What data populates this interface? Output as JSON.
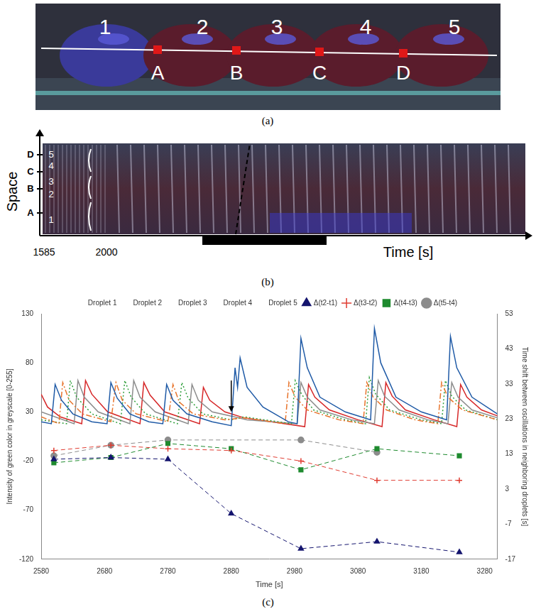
{
  "panel_a": {
    "droplet_labels": [
      "1",
      "2",
      "3",
      "4",
      "5"
    ],
    "point_labels": [
      "A",
      "B",
      "C",
      "D"
    ],
    "caption": "(a)"
  },
  "panel_b": {
    "y_axis_title": "Space",
    "x_axis_title": "Time [s]",
    "x_tick_labels": [
      1585,
      2000
    ],
    "space_labels": [
      "D",
      "C",
      "B",
      "A"
    ],
    "droplet_labels": [
      "5",
      "4",
      "3",
      "2",
      "1"
    ],
    "caption": "(b)"
  },
  "chart_data": {
    "type": "line",
    "caption": "(c)",
    "x_title": "Time [s]",
    "y_title": "Intensity of green color in greyscale [0-255]",
    "y2_title": "Time shift between oscillations in neighboring droplets [s]",
    "xlim": [
      2580,
      3300
    ],
    "xticks": [
      2580,
      2680,
      2780,
      2880,
      2980,
      3080,
      3180,
      3280
    ],
    "ylim": [
      -120,
      130
    ],
    "yticks": [
      -120,
      -70,
      -20,
      30,
      80,
      130
    ],
    "y2lim": [
      -17,
      53
    ],
    "y2ticks": [
      -17,
      -7,
      3,
      13,
      23,
      33,
      43,
      53
    ],
    "grid": false,
    "legend": "top",
    "annotations": [
      {
        "type": "arrow",
        "x": 2880,
        "y_from": 62,
        "y_to": 30
      }
    ],
    "series": [
      {
        "name": "Droplet 1",
        "color": "#1f5aa6",
        "line_style": "solid",
        "marker": "none",
        "x": [
          2580,
          2596,
          2602,
          2612,
          2630,
          2660,
          2684,
          2690,
          2700,
          2720,
          2750,
          2772,
          2778,
          2788,
          2810,
          2850,
          2880,
          2886,
          2890,
          2894,
          2905,
          2930,
          2970,
          2984,
          2990,
          3000,
          3020,
          3060,
          3100,
          3106,
          3116,
          3140,
          3180,
          3220,
          3226,
          3236,
          3260,
          3300
        ],
        "values": [
          20,
          18,
          58,
          42,
          28,
          20,
          18,
          60,
          44,
          28,
          20,
          18,
          58,
          42,
          28,
          20,
          16,
          75,
          55,
          85,
          55,
          35,
          20,
          18,
          105,
          75,
          45,
          30,
          22,
          115,
          80,
          45,
          30,
          22,
          107,
          75,
          45,
          28
        ]
      },
      {
        "name": "Droplet 2",
        "color": "#e8742c",
        "line_style": "dashdot",
        "marker": "none",
        "x": [
          2580,
          2608,
          2614,
          2624,
          2645,
          2690,
          2698,
          2708,
          2730,
          2780,
          2788,
          2798,
          2820,
          2870,
          2900,
          2965,
          2971,
          2981,
          3000,
          3050,
          3088,
          3094,
          3104,
          3125,
          3170,
          3206,
          3212,
          3222,
          3245,
          3300
        ],
        "values": [
          25,
          18,
          60,
          42,
          28,
          20,
          60,
          42,
          28,
          20,
          58,
          40,
          28,
          22,
          24,
          18,
          60,
          45,
          32,
          22,
          18,
          60,
          45,
          32,
          22,
          18,
          60,
          45,
          32,
          22
        ]
      },
      {
        "name": "Droplet 3",
        "color": "#2e9e3a",
        "line_style": "dotted",
        "marker": "none",
        "x": [
          2580,
          2620,
          2626,
          2636,
          2660,
          2705,
          2712,
          2722,
          2745,
          2795,
          2802,
          2812,
          2835,
          2880,
          2900,
          2975,
          2981,
          2991,
          3010,
          3060,
          3092,
          3098,
          3108,
          3130,
          3180,
          3212,
          3218,
          3228,
          3250,
          3300
        ],
        "values": [
          22,
          18,
          62,
          45,
          28,
          18,
          62,
          45,
          28,
          18,
          60,
          44,
          28,
          22,
          25,
          18,
          62,
          48,
          32,
          22,
          18,
          65,
          48,
          32,
          22,
          18,
          62,
          46,
          32,
          22
        ]
      },
      {
        "name": "Droplet 4",
        "color": "#8c8c8c",
        "line_style": "solid",
        "marker": "none",
        "x": [
          2580,
          2632,
          2638,
          2648,
          2670,
          2720,
          2726,
          2736,
          2760,
          2812,
          2818,
          2828,
          2850,
          2885,
          2905,
          2984,
          2990,
          3000,
          3020,
          3070,
          3106,
          3112,
          3122,
          3145,
          3190,
          3222,
          3228,
          3238,
          3260,
          3300
        ],
        "values": [
          30,
          18,
          62,
          45,
          30,
          18,
          62,
          45,
          30,
          18,
          58,
          42,
          30,
          25,
          22,
          18,
          60,
          45,
          32,
          22,
          18,
          62,
          46,
          32,
          22,
          18,
          60,
          45,
          32,
          24
        ]
      },
      {
        "name": "Droplet 5",
        "color": "#d62728",
        "line_style": "solid",
        "marker": "none",
        "x": [
          2580,
          2590,
          2610,
          2644,
          2650,
          2660,
          2685,
          2736,
          2742,
          2752,
          2775,
          2830,
          2836,
          2846,
          2870,
          2880,
          2900,
          2996,
          3002,
          3012,
          3035,
          3080,
          3118,
          3124,
          3134,
          3155,
          3200,
          3236,
          3242,
          3252,
          3275,
          3300
        ],
        "values": [
          48,
          35,
          25,
          18,
          62,
          48,
          30,
          18,
          60,
          47,
          30,
          18,
          55,
          42,
          30,
          28,
          24,
          15,
          58,
          45,
          32,
          22,
          15,
          60,
          46,
          32,
          22,
          15,
          58,
          45,
          32,
          26
        ]
      },
      {
        "name": "Δ(t2-t1)",
        "color": "#14146e",
        "line_style": "dashed",
        "marker": "triangle",
        "axis": "y2",
        "x": [
          2600,
          2690,
          2780,
          2880,
          2990,
          3110,
          3240
        ],
        "values": [
          11.5,
          12,
          11.5,
          -4,
          -14,
          -12,
          -15
        ]
      },
      {
        "name": "Δ(t3-t2)",
        "color": "#e03c31",
        "line_style": "dashed",
        "marker": "cross",
        "axis": "y2",
        "x": [
          2600,
          2690,
          2780,
          2880,
          2990,
          3110,
          3240
        ],
        "values": [
          14,
          15.5,
          14.5,
          14,
          11,
          5.5,
          5.5
        ]
      },
      {
        "name": "Δ(t4-t3)",
        "color": "#1e8a2e",
        "line_style": "dashed",
        "marker": "square",
        "axis": "y2",
        "x": [
          2600,
          2690,
          2780,
          2880,
          2990,
          3110,
          3240
        ],
        "values": [
          10.5,
          12,
          16,
          14.5,
          8.5,
          14.5,
          12.5
        ]
      },
      {
        "name": "Δ(t5-t4)",
        "color": "#8c8c8c",
        "line_style": "dashed",
        "marker": "circle",
        "axis": "y2",
        "x": [
          2600,
          2690,
          2780,
          2880,
          2990,
          3110,
          3240
        ],
        "values": [
          12.5,
          15.5,
          17,
          null,
          17,
          13.5,
          null
        ]
      }
    ]
  }
}
